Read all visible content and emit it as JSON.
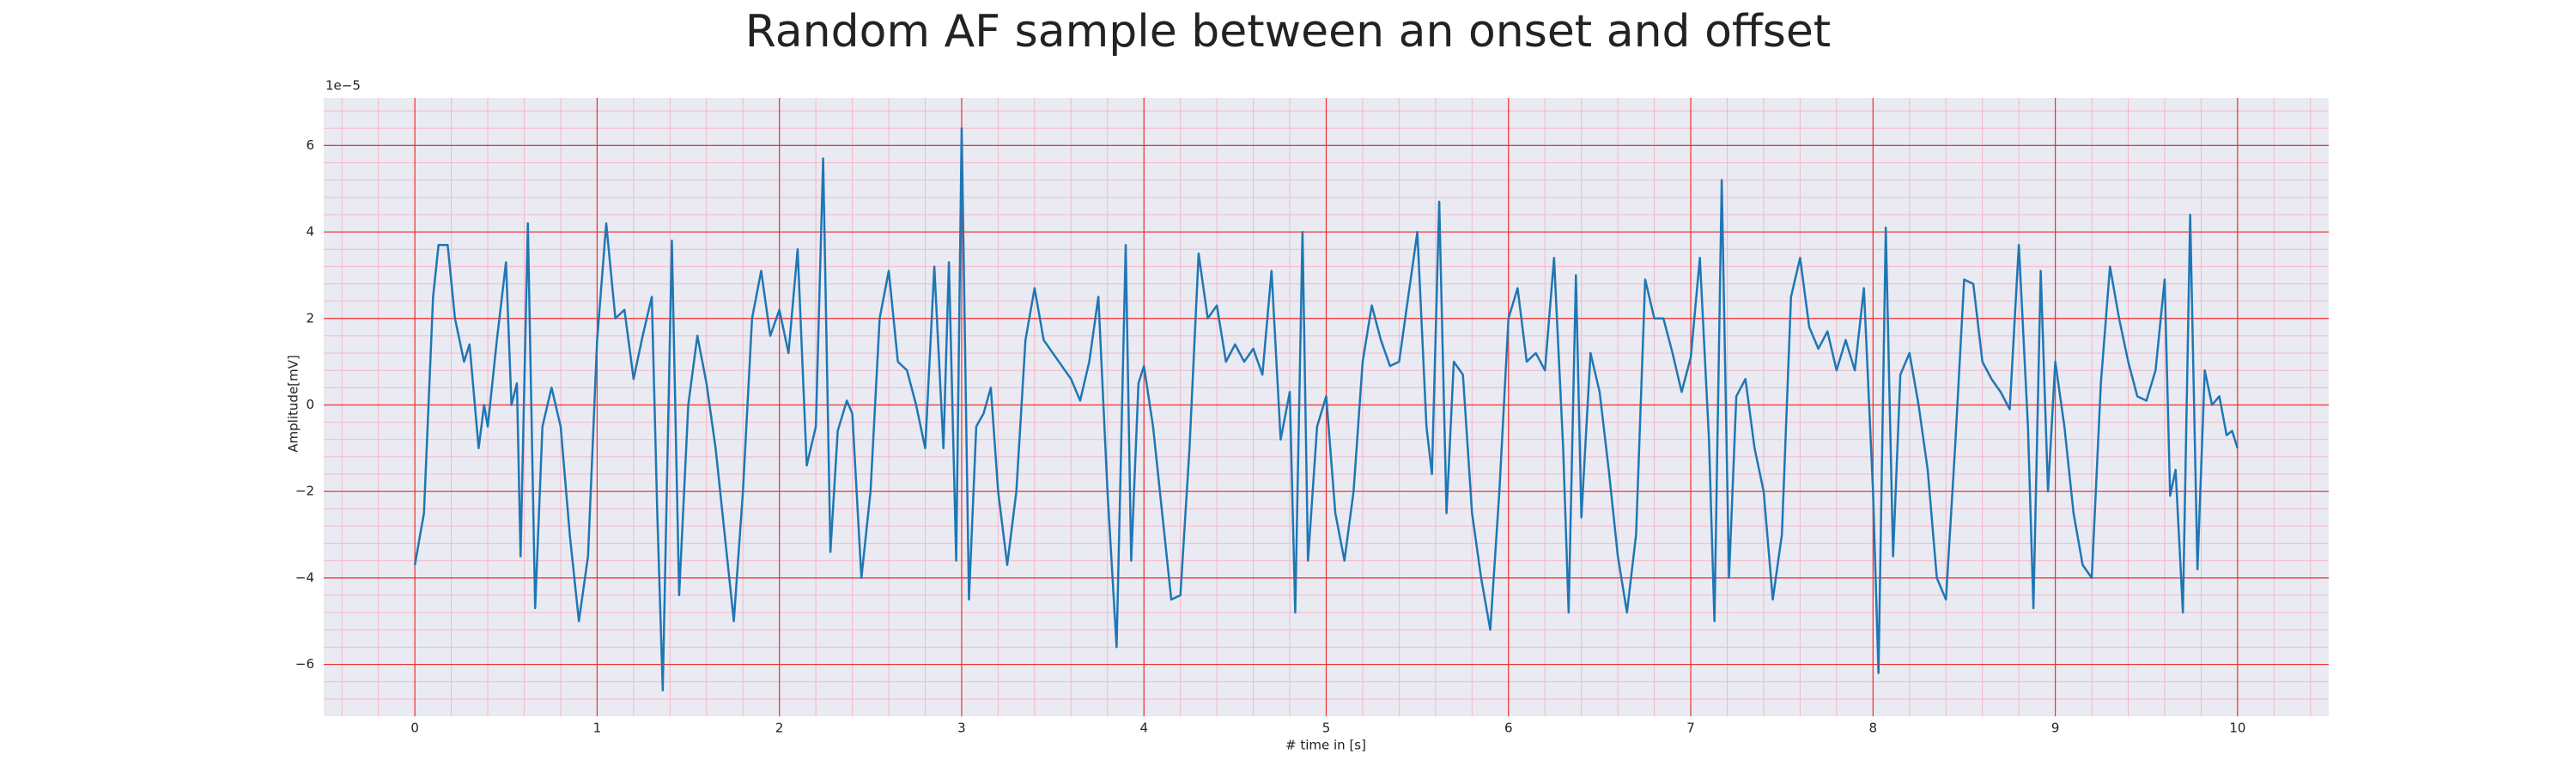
{
  "chart_data": {
    "type": "line",
    "title": "Random AF sample between an onset and offset",
    "xlabel": "# time in [s]",
    "ylabel": "Amplitude[mV]",
    "offset_label": "1e−5",
    "color": "#1f77b4",
    "grid": true,
    "minor_grid": true,
    "xlim": [
      -0.5,
      10.5
    ],
    "xticks": [
      0,
      1,
      2,
      3,
      4,
      5,
      6,
      7,
      8,
      9,
      10
    ],
    "ylim": [
      -7.2,
      7.1
    ],
    "yticks": [
      {
        "value": -6,
        "label": "−6"
      },
      {
        "value": -4,
        "label": "−4"
      },
      {
        "value": -2,
        "label": "−2"
      },
      0,
      2,
      4,
      6
    ],
    "x": [
      0.0,
      0.05,
      0.1,
      0.13,
      0.18,
      0.22,
      0.27,
      0.3,
      0.35,
      0.38,
      0.4,
      0.45,
      0.5,
      0.53,
      0.56,
      0.58,
      0.62,
      0.66,
      0.7,
      0.75,
      0.8,
      0.85,
      0.9,
      0.95,
      1.0,
      1.05,
      1.1,
      1.15,
      1.2,
      1.25,
      1.3,
      1.33,
      1.36,
      1.41,
      1.45,
      1.5,
      1.55,
      1.6,
      1.65,
      1.7,
      1.75,
      1.8,
      1.85,
      1.9,
      1.95,
      2.0,
      2.05,
      2.1,
      2.15,
      2.2,
      2.24,
      2.28,
      2.32,
      2.37,
      2.4,
      2.45,
      2.5,
      2.55,
      2.6,
      2.65,
      2.7,
      2.75,
      2.8,
      2.85,
      2.9,
      2.93,
      2.97,
      3.0,
      3.04,
      3.08,
      3.12,
      3.16,
      3.2,
      3.25,
      3.3,
      3.35,
      3.4,
      3.45,
      3.5,
      3.55,
      3.6,
      3.65,
      3.7,
      3.75,
      3.8,
      3.85,
      3.9,
      3.93,
      3.97,
      4.0,
      4.05,
      4.1,
      4.15,
      4.2,
      4.25,
      4.3,
      4.35,
      4.4,
      4.45,
      4.5,
      4.55,
      4.6,
      4.65,
      4.7,
      4.75,
      4.8,
      4.83,
      4.87,
      4.9,
      4.95,
      5.0,
      5.05,
      5.1,
      5.15,
      5.2,
      5.25,
      5.3,
      5.35,
      5.4,
      5.45,
      5.5,
      5.55,
      5.58,
      5.62,
      5.66,
      5.7,
      5.75,
      5.8,
      5.85,
      5.9,
      5.95,
      6.0,
      6.05,
      6.1,
      6.15,
      6.2,
      6.25,
      6.3,
      6.33,
      6.37,
      6.4,
      6.45,
      6.5,
      6.55,
      6.6,
      6.65,
      6.7,
      6.75,
      6.8,
      6.85,
      6.9,
      6.95,
      7.0,
      7.05,
      7.1,
      7.13,
      7.17,
      7.21,
      7.25,
      7.3,
      7.35,
      7.4,
      7.45,
      7.5,
      7.55,
      7.6,
      7.65,
      7.7,
      7.75,
      7.8,
      7.85,
      7.9,
      7.95,
      8.0,
      8.03,
      8.07,
      8.11,
      8.15,
      8.2,
      8.25,
      8.3,
      8.35,
      8.4,
      8.45,
      8.5,
      8.55,
      8.6,
      8.65,
      8.7,
      8.75,
      8.8,
      8.85,
      8.88,
      8.92,
      8.96,
      9.0,
      9.05,
      9.1,
      9.15,
      9.2,
      9.25,
      9.3,
      9.35,
      9.4,
      9.45,
      9.5,
      9.55,
      9.6,
      9.63,
      9.66,
      9.7,
      9.74,
      9.78,
      9.82,
      9.86,
      9.9,
      9.94,
      9.97,
      10.0
    ],
    "values": [
      -3.7,
      -2.5,
      2.5,
      3.7,
      3.7,
      2.0,
      1.0,
      1.4,
      -1.0,
      0.0,
      -0.5,
      1.5,
      3.3,
      0.0,
      0.5,
      -3.5,
      4.2,
      -4.7,
      -0.5,
      0.4,
      -0.5,
      -3.0,
      -5.0,
      -3.5,
      1.5,
      4.2,
      2.0,
      2.2,
      0.6,
      1.6,
      2.5,
      -2.5,
      -6.6,
      3.8,
      -4.4,
      0.0,
      1.6,
      0.5,
      -1.0,
      -3.0,
      -5.0,
      -2.0,
      2.0,
      3.1,
      1.6,
      2.2,
      1.2,
      3.6,
      -1.4,
      -0.5,
      5.7,
      -3.4,
      -0.6,
      0.1,
      -0.2,
      -4.0,
      -2.0,
      2.0,
      3.1,
      1.0,
      0.8,
      0.0,
      -1.0,
      3.2,
      -1.0,
      3.3,
      -3.6,
      6.4,
      -4.5,
      -0.5,
      -0.2,
      0.4,
      -2.0,
      -3.7,
      -2.0,
      1.5,
      2.7,
      1.5,
      1.2,
      0.9,
      0.6,
      0.1,
      1.0,
      2.5,
      -2.0,
      -5.6,
      3.7,
      -3.6,
      0.5,
      0.9,
      -0.5,
      -2.5,
      -4.5,
      -4.4,
      -1.0,
      3.5,
      2.0,
      2.3,
      1.0,
      1.4,
      1.0,
      1.3,
      0.7,
      3.1,
      -0.8,
      0.3,
      -4.8,
      4.0,
      -3.6,
      -0.5,
      0.2,
      -2.5,
      -3.6,
      -2.0,
      1.0,
      2.3,
      1.5,
      0.9,
      1.0,
      2.5,
      4.0,
      -0.5,
      -1.6,
      4.7,
      -2.5,
      1.0,
      0.7,
      -2.5,
      -4.0,
      -5.2,
      -2.0,
      2.0,
      2.7,
      1.0,
      1.2,
      0.8,
      3.4,
      -1.0,
      -4.8,
      3.0,
      -2.6,
      1.2,
      0.3,
      -1.5,
      -3.5,
      -4.8,
      -3.0,
      2.9,
      2.0,
      2.0,
      1.2,
      0.3,
      1.1,
      3.4,
      -0.8,
      -5.0,
      5.2,
      -4.0,
      0.2,
      0.6,
      -1.0,
      -2.0,
      -4.5,
      -3.0,
      2.5,
      3.4,
      1.8,
      1.3,
      1.7,
      0.8,
      1.5,
      0.8,
      2.7,
      -2.0,
      -6.2,
      4.1,
      -3.5,
      0.7,
      1.2,
      0.0,
      -1.5,
      -4.0,
      -4.5,
      -1.0,
      2.9,
      2.8,
      1.0,
      0.6,
      0.3,
      -0.1,
      3.7,
      -0.5,
      -4.7,
      3.1,
      -2.0,
      1.0,
      -0.5,
      -2.5,
      -3.7,
      -4.0,
      0.5,
      3.2,
      2.0,
      1.0,
      0.2,
      0.1,
      0.8,
      2.9,
      -2.1,
      -1.5,
      -4.8,
      4.4,
      -3.8,
      0.8,
      0.0,
      0.2,
      -0.7,
      -0.6,
      -1.0
    ]
  }
}
